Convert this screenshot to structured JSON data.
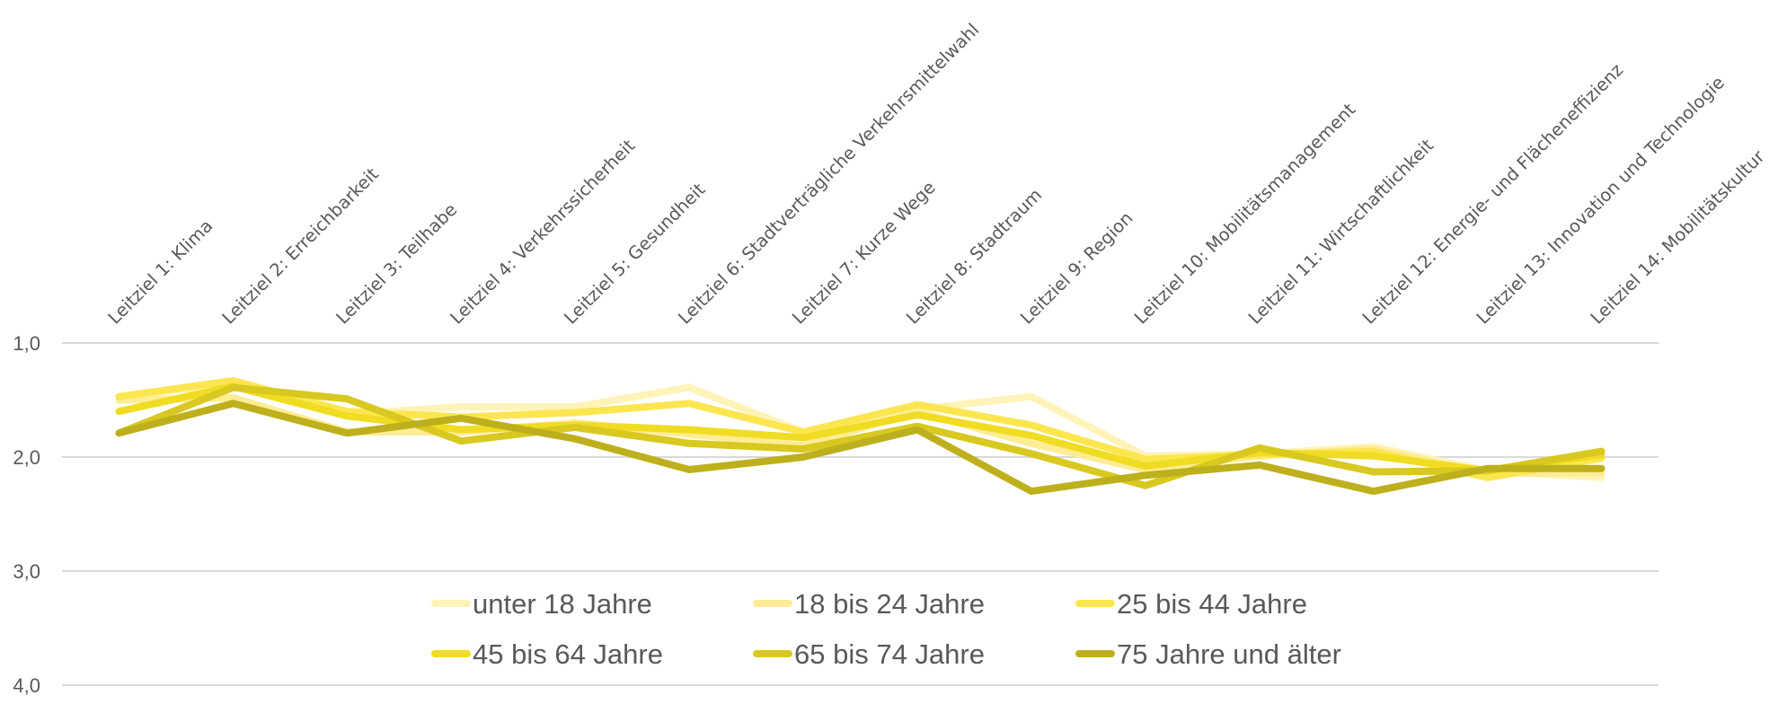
{
  "chart_data": {
    "type": "line",
    "title": "",
    "xlabel": "",
    "ylabel": "",
    "ylim": [
      1.0,
      4.0
    ],
    "y_reversed": true,
    "y_ticks": [
      "1,0",
      "2,0",
      "3,0",
      "4,0"
    ],
    "y_tick_values": [
      1.0,
      2.0,
      3.0,
      4.0
    ],
    "grid": true,
    "legend_position": "bottom",
    "categories": [
      "Leitziel 1: Klima",
      "Leitziel 2: Erreichbarkeit",
      "Leitziel 3: Teilhabe",
      "Leitziel 4: Verkehrssicherheit",
      "Leitziel 5: Gesundheit",
      "Leitziel 6: Stadtverträgliche Verkehrsmittelwahl",
      "Leitziel 7: Kurze Wege",
      "Leitziel 8: Stadtraum",
      "Leitziel 9: Region",
      "Leitziel 10: Mobilitätsmanagement",
      "Leitziel 11: Wirtschaftlichkeit",
      "Leitziel 12: Energie- und Flächeneffizienz",
      "Leitziel 13: Innovation und Technologie",
      "Leitziel 14: Mobilitätskultur"
    ],
    "series": [
      {
        "name": "unter 18 Jahre",
        "color": "#FFF3B8",
        "values": [
          1.47,
          1.36,
          1.62,
          1.56,
          1.56,
          1.39,
          1.78,
          1.58,
          1.47,
          1.99,
          1.97,
          1.91,
          2.12,
          2.18
        ]
      },
      {
        "name": "18 bis 24 Jahre",
        "color": "#FFEC94",
        "values": [
          1.5,
          1.48,
          1.78,
          1.78,
          1.7,
          1.8,
          1.9,
          1.6,
          1.88,
          2.11,
          1.99,
          1.93,
          2.14,
          2.14
        ]
      },
      {
        "name": "25 bis 44 Jahre",
        "color": "#FCE650",
        "values": [
          1.47,
          1.33,
          1.6,
          1.65,
          1.61,
          1.53,
          1.78,
          1.54,
          1.72,
          2.02,
          1.98,
          1.95,
          2.18,
          2.01
        ]
      },
      {
        "name": "45 bis 64 Jahre",
        "color": "#F0DC22",
        "values": [
          1.6,
          1.38,
          1.64,
          1.76,
          1.72,
          1.76,
          1.83,
          1.63,
          1.81,
          2.08,
          1.96,
          1.99,
          2.12,
          1.98
        ]
      },
      {
        "name": "65 bis 74 Jahre",
        "color": "#D8C820",
        "values": [
          1.79,
          1.39,
          1.49,
          1.86,
          1.74,
          1.88,
          1.93,
          1.73,
          1.97,
          2.25,
          1.92,
          2.13,
          2.12,
          1.95
        ]
      },
      {
        "name": "75 Jahre und älter",
        "color": "#BDB01C",
        "values": [
          1.79,
          1.53,
          1.79,
          1.66,
          1.84,
          2.11,
          2.0,
          1.76,
          2.3,
          2.16,
          2.07,
          2.3,
          2.1,
          2.1
        ]
      }
    ]
  }
}
